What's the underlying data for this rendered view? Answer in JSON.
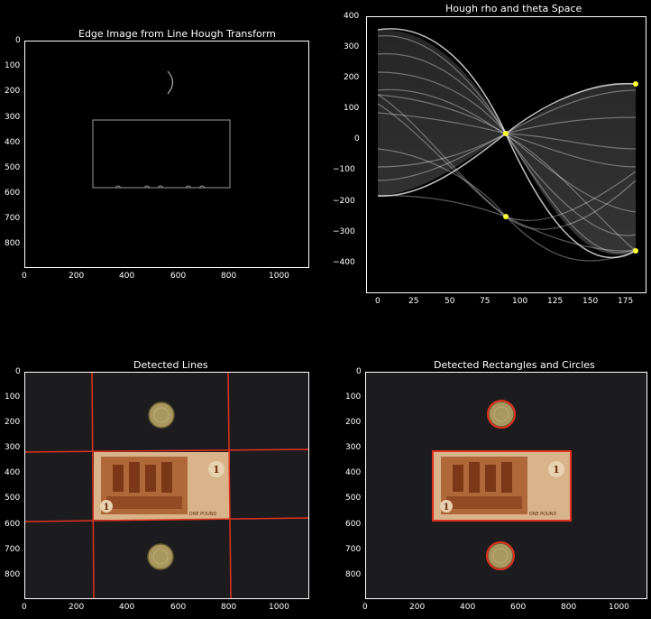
{
  "panels": {
    "edge": {
      "title": "Edge Image from Line Hough Transform",
      "xticks": [
        "0",
        "200",
        "400",
        "600",
        "800",
        "1000"
      ],
      "yticks": [
        "0",
        "100",
        "200",
        "300",
        "400",
        "500",
        "600",
        "700",
        "800"
      ]
    },
    "hough": {
      "title": "Hough rho and theta Space",
      "xticks": [
        "0",
        "25",
        "50",
        "75",
        "100",
        "125",
        "150",
        "175"
      ],
      "yticks": [
        "400",
        "300",
        "200",
        "100",
        "0",
        "−100",
        "−200",
        "−300",
        "−400"
      ]
    },
    "lines": {
      "title": "Detected Lines",
      "xticks": [
        "0",
        "200",
        "400",
        "600",
        "800",
        "1000"
      ],
      "yticks": [
        "0",
        "100",
        "200",
        "300",
        "400",
        "500",
        "600",
        "700",
        "800"
      ]
    },
    "rects": {
      "title": "Detected Rectangles and Circles",
      "xticks": [
        "0",
        "200",
        "400",
        "600",
        "800",
        "1000"
      ],
      "yticks": [
        "0",
        "100",
        "200",
        "300",
        "400",
        "500",
        "600",
        "700",
        "800"
      ]
    }
  },
  "banknote": {
    "numeral": "1",
    "text": "ONE POUND"
  },
  "colors": {
    "background": "#000000",
    "image_bg": "#1c1c1e",
    "detection_red": "#e0311f",
    "peak_yellow": "#ffff33",
    "note_fill": "#c98a55",
    "coin_fill": "#a8975e"
  }
}
